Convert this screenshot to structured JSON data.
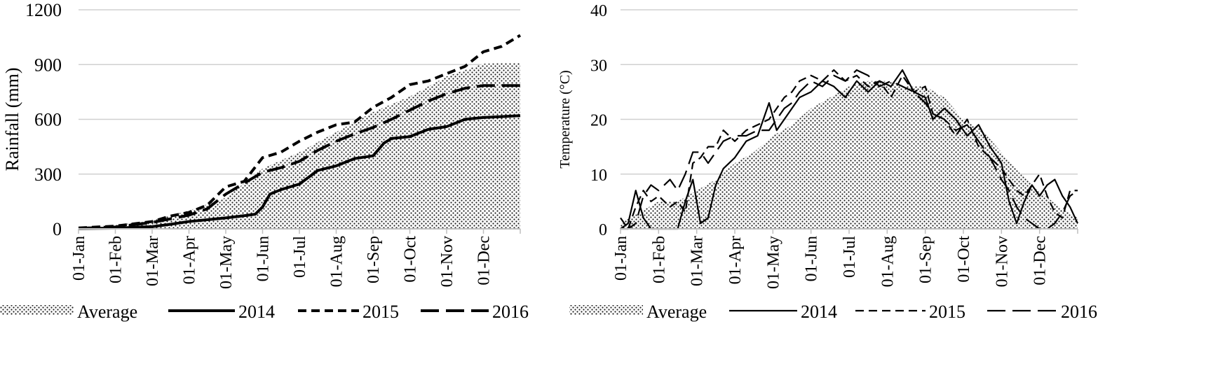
{
  "charts": [
    {
      "type": "area-line",
      "title": "",
      "ylabel": "Rainfall (mm)",
      "xlabel": "",
      "ylim": [
        0,
        1200
      ],
      "y_ticks": [
        0,
        300,
        600,
        900,
        1200
      ],
      "x_ticks": [
        "01-Jan",
        "01-Feb",
        "01-Mar",
        "01-Apr",
        "01-May",
        "01-Jun",
        "01-Jul",
        "01-Aug",
        "01-Sep",
        "01-Oct",
        "01-Nov",
        "01-Dec"
      ],
      "grid": true,
      "legend_position": "bottom",
      "series": [
        {
          "name": "Average",
          "style": "dotted-area",
          "x": [
            0,
            1,
            2,
            3,
            4,
            5,
            6,
            7,
            8,
            9,
            10,
            11,
            12
          ],
          "values": [
            8,
            20,
            45,
            100,
            170,
            330,
            420,
            530,
            640,
            725,
            835,
            905,
            910
          ]
        },
        {
          "name": "2014",
          "style": "solid",
          "x": [
            0,
            1,
            1.5,
            2,
            2.5,
            3,
            3.5,
            4,
            4.5,
            4.8,
            5,
            5.2,
            5.5,
            6,
            6.5,
            7,
            7.5,
            8,
            8.3,
            8.5,
            9,
            9.5,
            10,
            10.5,
            11,
            11.5,
            12
          ],
          "values": [
            2,
            4,
            8,
            12,
            25,
            40,
            50,
            60,
            72,
            80,
            120,
            190,
            215,
            245,
            320,
            345,
            385,
            400,
            470,
            495,
            505,
            545,
            560,
            600,
            610,
            615,
            620
          ]
        },
        {
          "name": "2015",
          "style": "short-dash",
          "x": [
            0,
            1,
            2,
            2.5,
            3,
            3.5,
            4,
            4.5,
            5,
            5.5,
            6,
            6.5,
            7,
            7.5,
            8,
            8.5,
            9,
            9.5,
            10,
            10.5,
            11,
            11.5,
            12
          ],
          "values": [
            5,
            15,
            40,
            70,
            90,
            130,
            230,
            260,
            390,
            420,
            480,
            530,
            570,
            585,
            665,
            720,
            790,
            810,
            850,
            890,
            970,
            1000,
            1060
          ]
        },
        {
          "name": "2016",
          "style": "long-dash",
          "x": [
            0,
            1,
            2,
            2.5,
            3,
            3.5,
            4,
            4.5,
            5,
            5.5,
            6,
            6.5,
            7,
            7.5,
            8,
            8.5,
            9,
            9.5,
            10,
            10.5,
            11,
            11.5,
            12
          ],
          "values": [
            3,
            10,
            35,
            55,
            75,
            110,
            190,
            250,
            310,
            335,
            370,
            430,
            480,
            520,
            555,
            600,
            650,
            700,
            740,
            770,
            785,
            785,
            785
          ]
        }
      ]
    },
    {
      "type": "area-line",
      "title": "",
      "ylabel": "Temperature (°C)",
      "xlabel": "",
      "ylim": [
        0,
        40
      ],
      "y_ticks": [
        0,
        10,
        20,
        30,
        40
      ],
      "x_ticks": [
        "01-Jan",
        "01-Feb",
        "01-Mar",
        "01-Apr",
        "01-May",
        "01-Jun",
        "01-Jul",
        "01-Aug",
        "01-Sep",
        "01-Oct",
        "01-Nov",
        "01-Dec"
      ],
      "grid": true,
      "legend_position": "bottom",
      "series": [
        {
          "name": "Average",
          "style": "dotted-area",
          "x": [
            0,
            0.5,
            1,
            1.5,
            2,
            2.5,
            3,
            3.5,
            4,
            4.5,
            5,
            5.5,
            6,
            6.5,
            7,
            7.5,
            8,
            8.5,
            9,
            9.5,
            10,
            10.5,
            11,
            11.5,
            12
          ],
          "values": [
            1,
            3,
            5,
            5,
            7,
            9,
            12,
            14,
            17,
            19,
            22,
            24,
            26,
            27,
            27,
            26,
            26,
            24,
            20,
            18,
            14,
            10,
            7,
            4,
            2
          ]
        },
        {
          "name": "2014",
          "style": "solid",
          "x": [
            0,
            0.2,
            0.4,
            0.6,
            0.8,
            1.0,
            1.3,
            1.5,
            1.7,
            1.9,
            2.1,
            2.3,
            2.5,
            2.7,
            3.0,
            3.3,
            3.6,
            3.9,
            4.1,
            4.3,
            4.5,
            4.7,
            5.0,
            5.3,
            5.6,
            5.9,
            6.2,
            6.5,
            6.8,
            7.1,
            7.4,
            7.7,
            8.0,
            8.2,
            8.5,
            8.8,
            9.1,
            9.4,
            9.7,
            10.0,
            10.2,
            10.4,
            10.6,
            10.8,
            11.0,
            11.2,
            11.4,
            11.6,
            11.8,
            12.0
          ],
          "values": [
            0,
            1,
            7,
            2,
            0,
            0,
            0,
            0,
            5,
            9,
            1,
            2,
            8,
            11,
            13,
            16,
            17,
            23,
            18,
            20,
            22,
            24,
            25,
            27,
            26,
            24,
            27,
            25,
            27,
            26,
            29,
            25,
            24,
            20,
            22,
            20,
            17,
            19,
            15,
            12,
            5,
            1,
            5,
            8,
            6,
            8,
            9,
            6,
            4,
            1
          ]
        },
        {
          "name": "2015",
          "style": "short-dash",
          "x": [
            0,
            0.2,
            0.4,
            0.6,
            0.8,
            1.0,
            1.3,
            1.5,
            1.7,
            1.9,
            2.1,
            2.3,
            2.5,
            2.7,
            3.0,
            3.3,
            3.6,
            3.9,
            4.1,
            4.3,
            4.5,
            4.7,
            5.0,
            5.3,
            5.6,
            5.9,
            6.2,
            6.5,
            6.8,
            7.1,
            7.4,
            7.7,
            8.0,
            8.2,
            8.5,
            8.8,
            9.1,
            9.4,
            9.7,
            10.0,
            10.2,
            10.4,
            10.6,
            10.8,
            11.0,
            11.2,
            11.4,
            11.6,
            11.8,
            12.0
          ],
          "values": [
            2,
            0,
            4,
            7,
            5,
            6,
            4,
            5,
            3,
            12,
            13,
            15,
            15,
            18,
            16,
            18,
            19,
            20,
            22,
            24,
            25,
            27,
            28,
            27,
            29,
            27,
            28,
            26,
            27,
            24,
            28,
            25,
            26,
            21,
            20,
            17,
            20,
            15,
            13,
            11,
            9,
            7,
            6,
            8,
            10,
            6,
            3,
            2,
            7,
            7
          ]
        },
        {
          "name": "2016",
          "style": "long-dash",
          "x": [
            0,
            0.2,
            0.4,
            0.6,
            0.8,
            1.0,
            1.3,
            1.5,
            1.7,
            1.9,
            2.1,
            2.3,
            2.5,
            2.7,
            3.0,
            3.3,
            3.6,
            3.9,
            4.1,
            4.3,
            4.5,
            4.7,
            5.0,
            5.3,
            5.6,
            5.9,
            6.2,
            6.5,
            6.8,
            7.1,
            7.4,
            7.7,
            8.0,
            8.2,
            8.5,
            8.8,
            9.1,
            9.4,
            9.7,
            10.0,
            10.2,
            10.4,
            10.6,
            10.8,
            11.0,
            11.2,
            11.4,
            11.6,
            11.8,
            12.0
          ],
          "values": [
            0,
            0,
            1,
            6,
            8,
            7,
            9,
            7,
            10,
            14,
            14,
            12,
            14,
            16,
            17,
            17,
            18,
            18,
            20,
            22,
            23,
            25,
            27,
            26,
            28,
            27,
            29,
            28,
            26,
            27,
            26,
            25,
            23,
            21,
            20,
            18,
            19,
            16,
            13,
            9,
            7,
            4,
            2,
            1,
            0,
            0,
            1,
            3,
            6,
            7
          ]
        }
      ]
    }
  ]
}
